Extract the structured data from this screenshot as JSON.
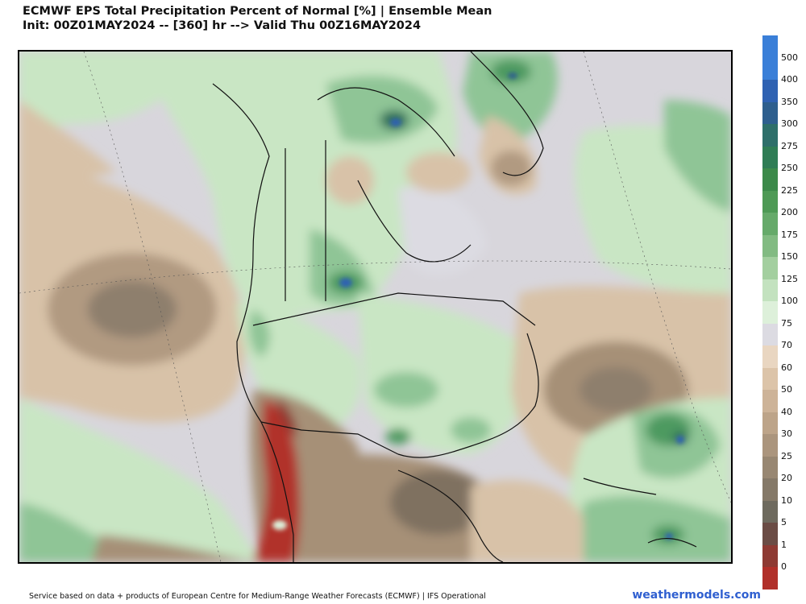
{
  "header": {
    "title_line1": "ECMWF EPS Total Precipitation Percent of Normal [%] | Ensemble Mean",
    "title_line2": "Init: 00Z01MAY2024 -- [360] hr --> Valid Thu 00Z16MAY2024"
  },
  "colorbar": {
    "labels": [
      "500",
      "400",
      "350",
      "300",
      "275",
      "250",
      "225",
      "200",
      "175",
      "150",
      "125",
      "100",
      "75",
      "70",
      "60",
      "50",
      "40",
      "30",
      "25",
      "20",
      "10",
      "5",
      "1",
      "0"
    ],
    "colors": [
      "#3a7fd8",
      "#2f62b2",
      "#2e5f8e",
      "#2e6f6a",
      "#2f7d55",
      "#3c8a4a",
      "#4e9a55",
      "#66aa6a",
      "#82bb82",
      "#a3cf9f",
      "#c3e2bf",
      "#ddf0da",
      "#dcdbe2",
      "#e9d6c1",
      "#dcc4a9",
      "#cdb398",
      "#bda489",
      "#ab957d",
      "#988772",
      "#857968",
      "#6e6a5e",
      "#6b4c45",
      "#8e3a33",
      "#b1302a"
    ]
  },
  "map_colors": {
    "ocean_gray": "#d8d6dc",
    "light_green": "#c9e6c4",
    "mid_green": "#8fc596",
    "dark_green": "#4e9a60",
    "deep_green": "#2e6f58",
    "blue_core": "#2f62b2",
    "tan": "#d8c2a8",
    "brown": "#a69077",
    "dark_brown": "#7f7161",
    "red": "#b1302a"
  },
  "footer": {
    "credit": "Service based on data + products of European Centre for Medium-Range Weather Forecasts (ECMWF) | IFS Operational",
    "brand": "weathermodels.com"
  }
}
